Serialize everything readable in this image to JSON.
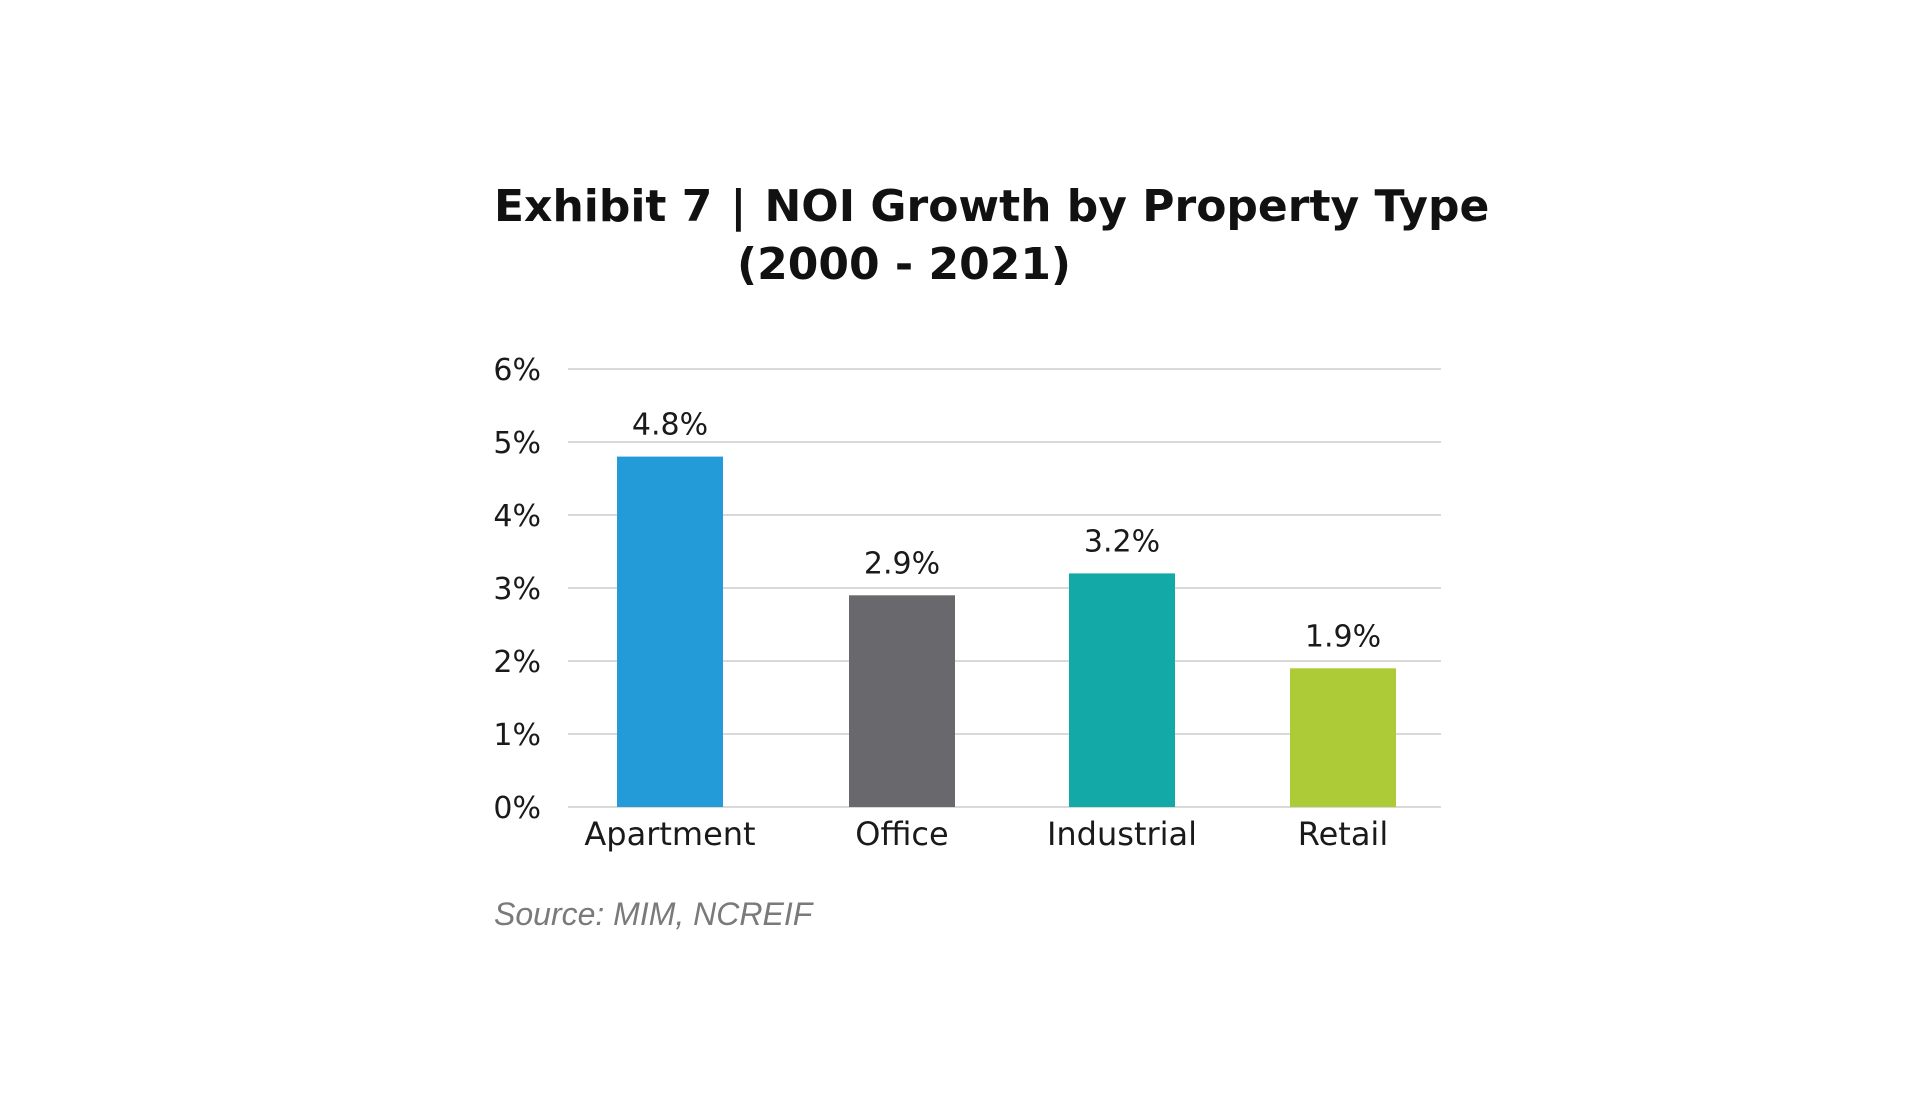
{
  "header": {
    "exhibit": "Exhibit 7",
    "separator": "|",
    "title_line1": "NOI Growth by Property Type",
    "title_line2": "(2000 - 2021)"
  },
  "chart_data": {
    "type": "bar",
    "title": "Exhibit 7 | NOI Growth by Property Type (2000 - 2021)",
    "categories": [
      "Apartment",
      "Office",
      "Industrial",
      "Retail"
    ],
    "values": [
      4.8,
      2.9,
      3.2,
      1.9
    ],
    "data_labels": [
      "4.8%",
      "2.9%",
      "3.2%",
      "1.9%"
    ],
    "colors": [
      "#239BD8",
      "#69696D",
      "#12A9A7",
      "#ADCB36"
    ],
    "ylim": [
      0,
      6
    ],
    "yticks": [
      0,
      1,
      2,
      3,
      4,
      5,
      6
    ],
    "ytick_labels": [
      "0%",
      "1%",
      "2%",
      "3%",
      "4%",
      "5%",
      "6%"
    ],
    "xlabel": "",
    "ylabel": "",
    "grid": true,
    "grid_color": "#D9D9D9"
  },
  "footer": {
    "source": "Source: MIM, NCREIF"
  }
}
